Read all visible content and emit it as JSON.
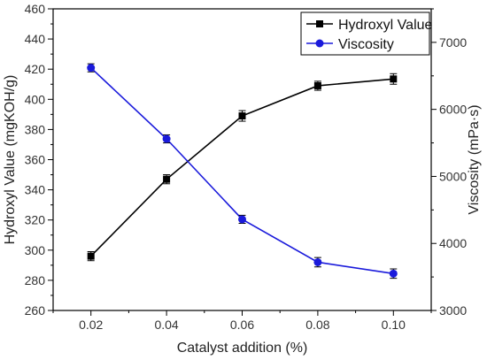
{
  "chart_data": {
    "type": "line",
    "xlabel": "Catalyst addition (%)",
    "ylabel_left": "Hydroxyl Value (mgKOH/g)",
    "ylabel_right": "Viscosity (mPa·s)",
    "x": [
      0.02,
      0.04,
      0.06,
      0.08,
      0.1
    ],
    "x_tick_labels": [
      "0.02",
      "0.04",
      "0.06",
      "0.08",
      "0.10"
    ],
    "xlim": [
      0.01,
      0.11
    ],
    "ylim_left": [
      260,
      460
    ],
    "y_left_ticks": [
      260,
      280,
      300,
      320,
      340,
      360,
      380,
      400,
      420,
      440,
      460
    ],
    "ylim_right": [
      3000,
      7500
    ],
    "y_right_ticks": [
      3000,
      4000,
      5000,
      6000,
      7000
    ],
    "grid": false,
    "legend_position": "top-right",
    "series": [
      {
        "name": "Hydroxyl Value",
        "axis": "left",
        "marker": "square",
        "color": "#000000",
        "values": [
          296,
          347,
          389,
          409,
          413.5
        ],
        "errors": [
          3,
          3,
          3.5,
          3,
          3.5
        ]
      },
      {
        "name": "Viscosity",
        "axis": "right",
        "marker": "circle",
        "color": "#1a1adb",
        "values": [
          6620,
          5560,
          4360,
          3720,
          3550
        ],
        "errors": [
          60,
          60,
          60,
          70,
          70
        ]
      }
    ]
  }
}
